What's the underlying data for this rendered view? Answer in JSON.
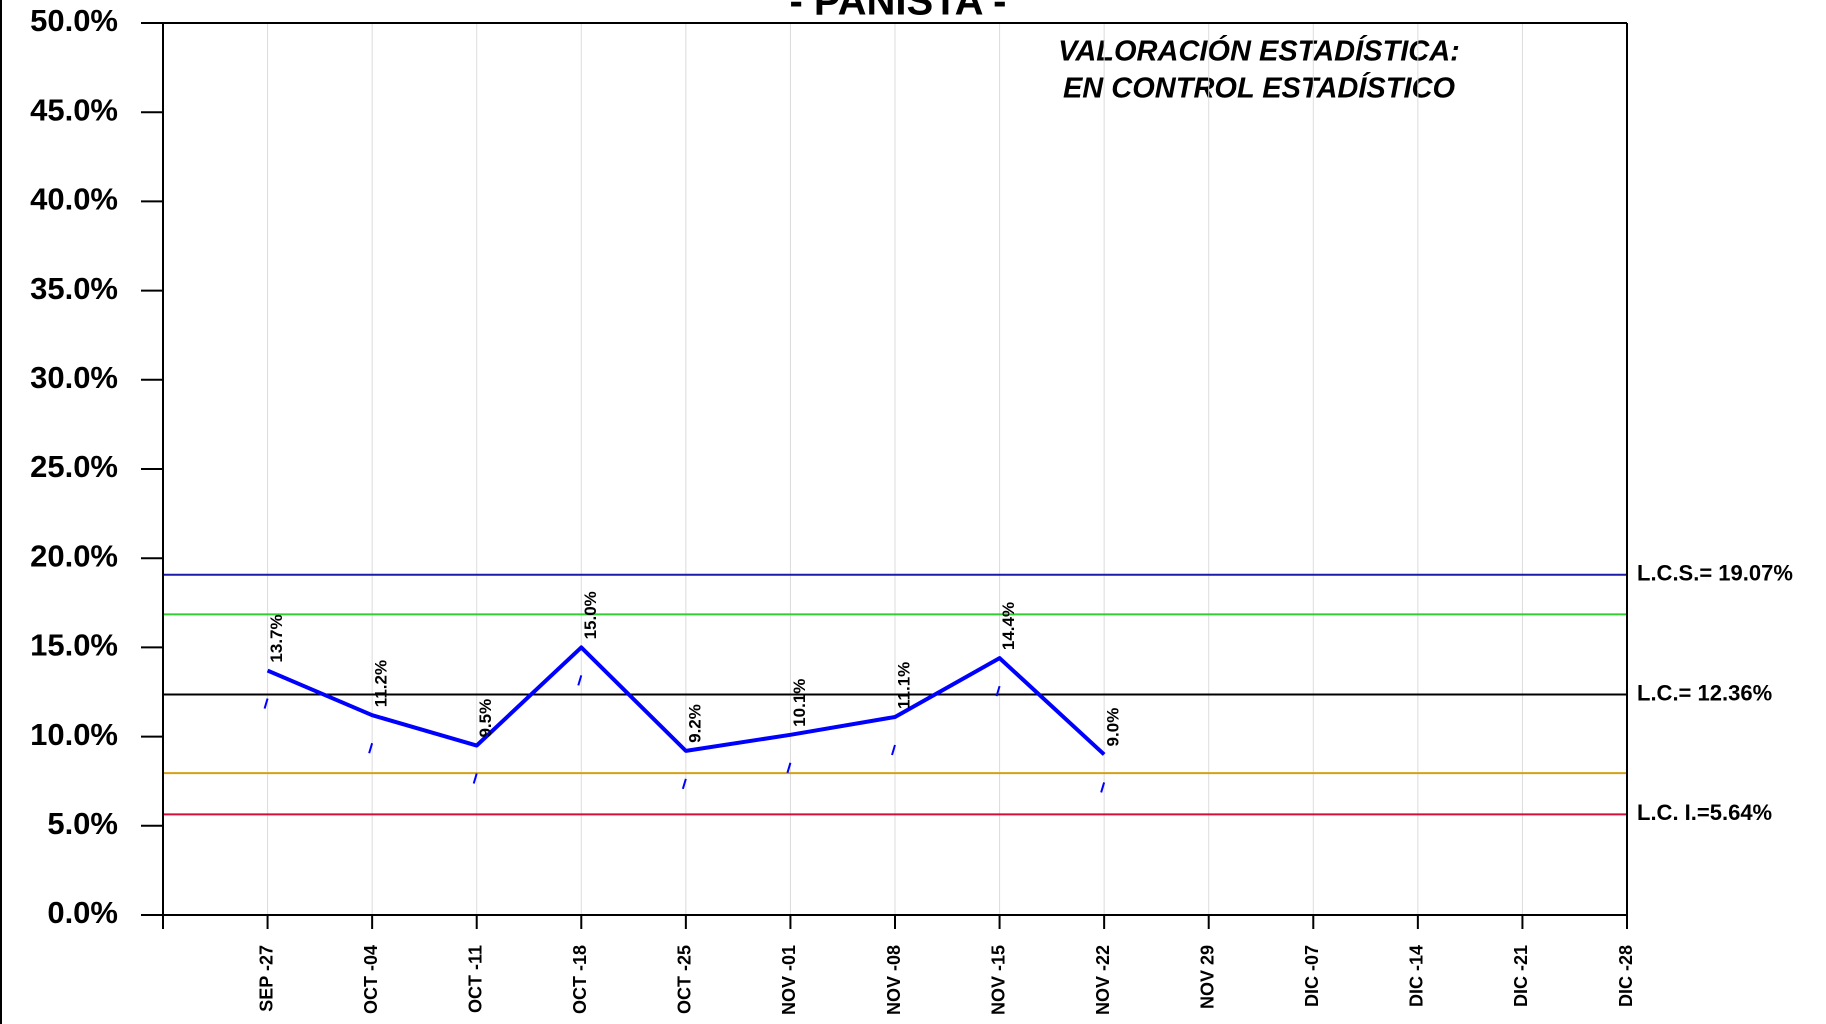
{
  "chart_data": {
    "type": "line",
    "title": "- PANISTA -",
    "annotations": [
      "VALORACIÓN ESTADÍSTICA:",
      "EN CONTROL ESTADÍSTICO"
    ],
    "categories": [
      null,
      "SEP -27",
      "OCT -04",
      "OCT -11",
      "OCT -18",
      "OCT -25",
      "NOV -01",
      "NOV -08",
      "NOV -15",
      "NOV -22",
      "NOV 29",
      "DIC -07",
      "DIC -14",
      "DIC -21",
      "DIC -28"
    ],
    "series": [
      {
        "name": null,
        "color": "#0000ff",
        "values": [
          null,
          13.7,
          11.2,
          9.5,
          15.0,
          9.2,
          10.1,
          11.1,
          14.4,
          9.0,
          null,
          null,
          null,
          null,
          null
        ],
        "value_labels": [
          null,
          "13.7%",
          "11.2%",
          "9.5%",
          "15.0%",
          "9.2%",
          "10.1%",
          "11.1%",
          "14.4%",
          "9.0%",
          null,
          null,
          null,
          null,
          null
        ]
      }
    ],
    "reference_lines": [
      {
        "value": 19.07,
        "label": "L.C.S.= 19.07%",
        "color": "#1c1ca8"
      },
      {
        "value": 16.85,
        "color": "#33cc33"
      },
      {
        "value": 12.36,
        "label": "L.C.= 12.36%",
        "color": "#000000"
      },
      {
        "value": 7.95,
        "color": "#d4a017"
      },
      {
        "value": 5.64,
        "label": "L.C. I.=5.64%",
        "color": "#d0103a"
      }
    ],
    "ylim": [
      0,
      50
    ],
    "yticks": [
      {
        "value": 0,
        "label": "0.0%"
      },
      {
        "value": 5,
        "label": "5.0%"
      },
      {
        "value": 10,
        "label": "10.0%"
      },
      {
        "value": 15,
        "label": "15.0%"
      },
      {
        "value": 20,
        "label": "20.0%"
      },
      {
        "value": 25,
        "label": "25.0%"
      },
      {
        "value": 30,
        "label": "30.0%"
      },
      {
        "value": 35,
        "label": "35.0%"
      },
      {
        "value": 40,
        "label": "40.0%"
      },
      {
        "value": 45,
        "label": "45.0%"
      },
      {
        "value": 50,
        "label": "50.0%"
      }
    ],
    "grid": true
  }
}
